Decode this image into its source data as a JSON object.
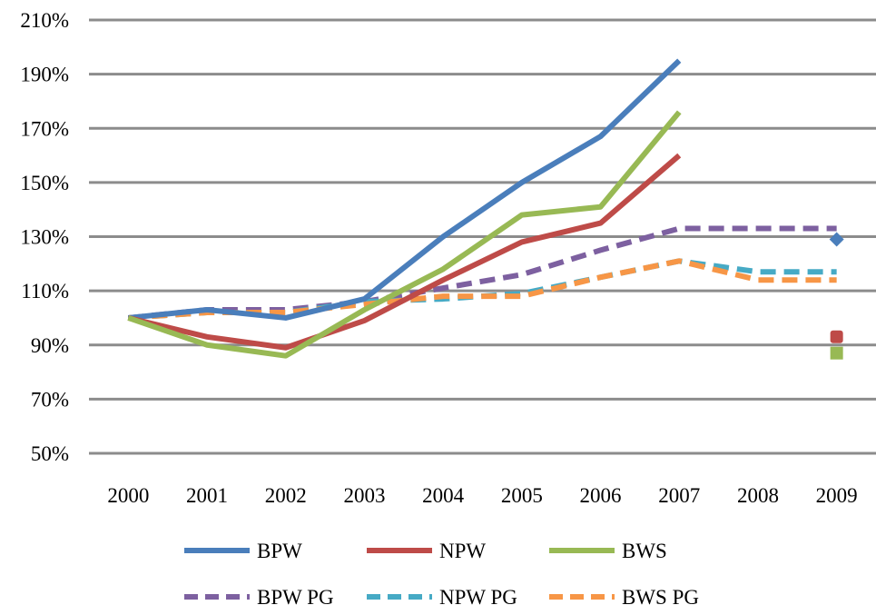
{
  "chart_data": {
    "type": "line",
    "title": "",
    "xlabel": "",
    "ylabel": "",
    "categories": [
      "2000",
      "2001",
      "2002",
      "2003",
      "2004",
      "2005",
      "2006",
      "2007",
      "2008",
      "2009"
    ],
    "ylim": [
      50,
      210
    ],
    "y_ticks": [
      50,
      70,
      90,
      110,
      130,
      150,
      170,
      190,
      210
    ],
    "y_tick_labels": [
      "50%",
      "70%",
      "90%",
      "110%",
      "130%",
      "150%",
      "170%",
      "190%",
      "210%"
    ],
    "grid": "horizontal",
    "legend_position": "bottom",
    "series": [
      {
        "name": "BPW",
        "style": "solid",
        "color": "#4a7ebb",
        "values": [
          100,
          103,
          100,
          107,
          130,
          150,
          167,
          195,
          null,
          129
        ]
      },
      {
        "name": "NPW",
        "style": "solid",
        "color": "#be4b48",
        "values": [
          100,
          93,
          89,
          99,
          114,
          128,
          135,
          160,
          null,
          93
        ]
      },
      {
        "name": "BWS",
        "style": "solid",
        "color": "#98b954",
        "values": [
          100,
          90,
          86,
          103,
          118,
          138,
          141,
          176,
          null,
          87
        ]
      },
      {
        "name": "BPW PG",
        "style": "dashed",
        "color": "#7d60a0",
        "values": [
          100,
          103,
          103,
          106,
          111,
          116,
          125,
          133,
          133,
          133
        ]
      },
      {
        "name": "NPW PG",
        "style": "dashed",
        "color": "#46aac5",
        "values": [
          100,
          102,
          102,
          106,
          107,
          109,
          115,
          121,
          117,
          117
        ]
      },
      {
        "name": "BWS PG",
        "style": "dashed",
        "color": "#f79646",
        "values": [
          100,
          102,
          102,
          105,
          108,
          108,
          115,
          121,
          114,
          114
        ]
      }
    ]
  }
}
